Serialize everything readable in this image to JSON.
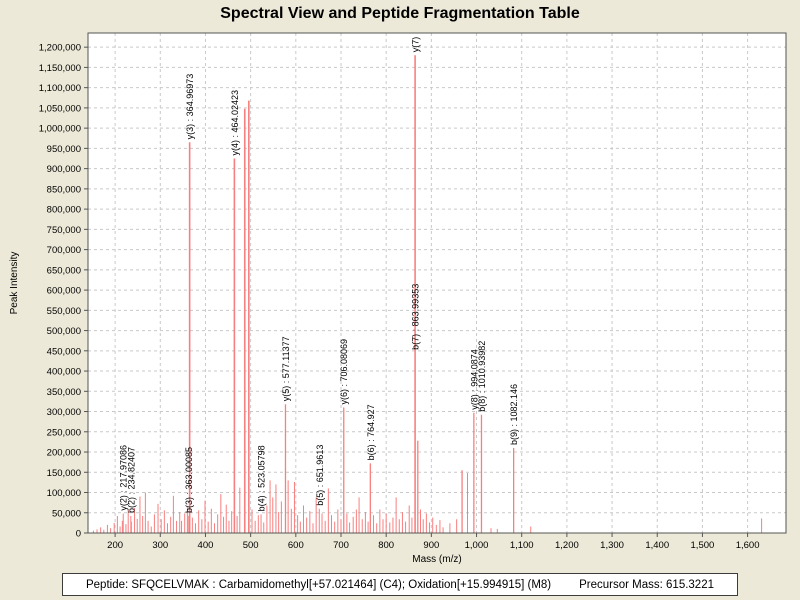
{
  "title": "Spectral View and Peptide Fragmentation Table",
  "footer": {
    "peptide": "Peptide: SFQCELVMAK : Carbamidomethyl[+57.021464] (C4); Oxidation[+15.994915] (M8)",
    "precursor": "Precursor Mass: 615.3221"
  },
  "colors": {
    "page_background": "#ece9d8",
    "plot_background": "#ffffff",
    "plot_border": "#555555",
    "gridline": "#c9c9c9",
    "peak": "#f87f7f",
    "text": "#000000"
  },
  "chart_data": {
    "type": "bar",
    "title": "Spectral View and Peptide Fragmentation Table",
    "xlabel": "Mass (m/z)",
    "ylabel": "Peak Intensity",
    "xlim": [
      140,
      1685
    ],
    "ylim": [
      0,
      1235000
    ],
    "x_ticks": [
      200,
      300,
      400,
      500,
      600,
      700,
      800,
      900,
      1000,
      1100,
      1200,
      1300,
      1400,
      1500,
      1600
    ],
    "y_ticks": [
      0,
      50000,
      100000,
      150000,
      200000,
      250000,
      300000,
      350000,
      400000,
      450000,
      500000,
      550000,
      600000,
      650000,
      700000,
      750000,
      800000,
      850000,
      900000,
      950000,
      1000000,
      1050000,
      1100000,
      1150000,
      1200000
    ],
    "grid": true,
    "legend": "none",
    "annotated_peaks": [
      {
        "label": "y(2) : 217.97086",
        "mz": 217.97086,
        "intensity": 48000
      },
      {
        "label": "b(2) : 234.82407",
        "mz": 234.82407,
        "intensity": 42000
      },
      {
        "label": "b(3) : 363.00085",
        "mz": 363.00085,
        "intensity": 42000
      },
      {
        "label": "y(3) : 364.96973",
        "mz": 364.96973,
        "intensity": 965000
      },
      {
        "label": "y(4) : 464.02423",
        "mz": 464.02423,
        "intensity": 925000
      },
      {
        "label": "b(4) : 523.05798",
        "mz": 523.05798,
        "intensity": 46000
      },
      {
        "label": "y(5) : 577.11377",
        "mz": 577.11377,
        "intensity": 318000
      },
      {
        "label": "b(5) : 651.9613",
        "mz": 651.9613,
        "intensity": 60000
      },
      {
        "label": "y(6) : 706.08069",
        "mz": 706.08069,
        "intensity": 310000
      },
      {
        "label": "b(6) : 764.927",
        "mz": 764.927,
        "intensity": 172000
      },
      {
        "label": "y(7)",
        "mz": 863.99353,
        "intensity": 1180000
      },
      {
        "label": "b(7) : 863.99353",
        "mz": 863.99353,
        "intensity": 0,
        "label_at": 445000
      },
      {
        "label": "y(8) : 994.0874",
        "mz": 994.0874,
        "intensity": 297000
      },
      {
        "label": "b(8) : 1010.93982",
        "mz": 1010.93982,
        "intensity": 292000
      },
      {
        "label": "b(9) : 1082.146",
        "mz": 1082.146,
        "intensity": 210000
      }
    ],
    "unannotated_major_peaks": [
      [
        487,
        1048000
      ],
      [
        496,
        1068000
      ]
    ],
    "noise_peaks": [
      [
        152,
        6000
      ],
      [
        160,
        9000
      ],
      [
        168,
        14000
      ],
      [
        175,
        8000
      ],
      [
        183,
        20000
      ],
      [
        190,
        12000
      ],
      [
        198,
        25000
      ],
      [
        205,
        42000
      ],
      [
        211,
        16000
      ],
      [
        216,
        30000
      ],
      [
        224,
        22000
      ],
      [
        229,
        58000
      ],
      [
        236,
        28000
      ],
      [
        243,
        62000
      ],
      [
        249,
        35000
      ],
      [
        255,
        90000
      ],
      [
        261,
        42000
      ],
      [
        267,
        100000
      ],
      [
        273,
        30000
      ],
      [
        280,
        16000
      ],
      [
        287,
        46000
      ],
      [
        295,
        72000
      ],
      [
        302,
        34000
      ],
      [
        309,
        56000
      ],
      [
        316,
        24000
      ],
      [
        323,
        40000
      ],
      [
        329,
        92000
      ],
      [
        336,
        30000
      ],
      [
        343,
        52000
      ],
      [
        347,
        30000
      ],
      [
        354,
        48000
      ],
      [
        360,
        64000
      ],
      [
        371,
        38000
      ],
      [
        378,
        24000
      ],
      [
        385,
        56000
      ],
      [
        392,
        34000
      ],
      [
        399,
        80000
      ],
      [
        406,
        28000
      ],
      [
        413,
        60000
      ],
      [
        420,
        24000
      ],
      [
        427,
        46000
      ],
      [
        434,
        96000
      ],
      [
        440,
        40000
      ],
      [
        446,
        70000
      ],
      [
        452,
        30000
      ],
      [
        458,
        54000
      ],
      [
        470,
        42000
      ],
      [
        476,
        112000
      ],
      [
        503,
        58000
      ],
      [
        510,
        30000
      ],
      [
        517,
        44000
      ],
      [
        529,
        26000
      ],
      [
        536,
        68000
      ],
      [
        543,
        130000
      ],
      [
        549,
        88000
      ],
      [
        556,
        120000
      ],
      [
        562,
        52000
      ],
      [
        568,
        78000
      ],
      [
        583,
        130000
      ],
      [
        590,
        60000
      ],
      [
        597,
        126000
      ],
      [
        604,
        44000
      ],
      [
        610,
        28000
      ],
      [
        617,
        68000
      ],
      [
        624,
        38000
      ],
      [
        631,
        54000
      ],
      [
        638,
        24000
      ],
      [
        645,
        88000
      ],
      [
        658,
        48000
      ],
      [
        665,
        30000
      ],
      [
        672,
        110000
      ],
      [
        679,
        44000
      ],
      [
        686,
        28000
      ],
      [
        693,
        58000
      ],
      [
        700,
        34000
      ],
      [
        713,
        48000
      ],
      [
        719,
        26000
      ],
      [
        727,
        40000
      ],
      [
        734,
        58000
      ],
      [
        740,
        88000
      ],
      [
        747,
        34000
      ],
      [
        754,
        52000
      ],
      [
        760,
        28000
      ],
      [
        772,
        44000
      ],
      [
        779,
        24000
      ],
      [
        786,
        58000
      ],
      [
        793,
        34000
      ],
      [
        800,
        48000
      ],
      [
        808,
        26000
      ],
      [
        815,
        38000
      ],
      [
        822,
        88000
      ],
      [
        829,
        34000
      ],
      [
        836,
        52000
      ],
      [
        843,
        28000
      ],
      [
        851,
        68000
      ],
      [
        857,
        38000
      ],
      [
        870,
        228000
      ],
      [
        876,
        58000
      ],
      [
        882,
        34000
      ],
      [
        889,
        48000
      ],
      [
        896,
        26000
      ],
      [
        903,
        38000
      ],
      [
        911,
        20000
      ],
      [
        919,
        32000
      ],
      [
        926,
        14000
      ],
      [
        941,
        24000
      ],
      [
        956,
        34000
      ],
      [
        968,
        155000
      ],
      [
        980,
        148000
      ],
      [
        1032,
        12000
      ],
      [
        1046,
        10000
      ],
      [
        1120,
        16000
      ],
      [
        1631,
        36000
      ]
    ]
  }
}
